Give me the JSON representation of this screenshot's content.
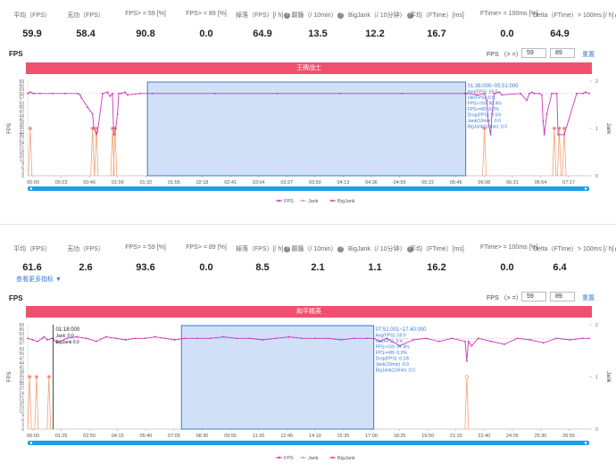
{
  "panels": [
    {
      "stats": [
        {
          "label": "平均（FPS）",
          "value": "59.9",
          "help": false
        },
        {
          "label": "无功（FPS）",
          "value": "58.4",
          "help": false
        },
        {
          "label": "FPS> = 59 [%]",
          "value": "90.8",
          "help": false
        },
        {
          "label": "FPS> = 89 [%]",
          "value": "0.0",
          "help": false
        },
        {
          "label": "掉落（FPS）[/ h]",
          "value": "64.9",
          "help": true
        },
        {
          "label": "颠簸（/ 10min）",
          "value": "13.5",
          "help": true
        },
        {
          "label": "BigJank（/ 10分钟）",
          "value": "12.2",
          "help": true
        },
        {
          "label": "平均（FTime）[ms]",
          "value": "16.7",
          "help": false
        },
        {
          "label": "FTime> = 100ms [%]",
          "value": "0.0",
          "help": false
        },
        {
          "label": "Delta（FTime）> 100ms [/ h]",
          "value": "64.9",
          "help": true
        }
      ],
      "more_link": "",
      "fps_title": "FPS",
      "filter_label": "FPS （> =）",
      "filter_values": [
        "59",
        "89"
      ],
      "reset_label": "重置",
      "banner": "王牌战士",
      "legend": [
        "FPS",
        "Jank",
        "BigJank"
      ],
      "tooltip_lines": [
        "01:36:000~05:51:000",
        "Avg(FPS)        :59.5",
        "Var(FPS)         :0.5",
        "FPS>=59         :98.4%",
        "FPS>=89         :0.0%",
        "Drop(FPS)       :0.0/h",
        "Jank(10min)     :0.0",
        "BigJank(10min) :0.0"
      ],
      "chart_data": {
        "type": "line",
        "title": "",
        "ylabel": "FPS",
        "y2label": "Jank",
        "ylim": [
          0,
          69
        ],
        "y2lim": [
          0,
          2
        ],
        "yticks": [
          0,
          3,
          6,
          9,
          12,
          15,
          18,
          21,
          24,
          27,
          30,
          32,
          35,
          38,
          41,
          44,
          47,
          50,
          53,
          57,
          60,
          63,
          66,
          69
        ],
        "y2ticks": [
          0,
          1,
          2
        ],
        "xmax_seconds": 450,
        "x_ticks": [
          "00:00",
          "00:23",
          "00:46",
          "01:09",
          "01:32",
          "01:55",
          "02:18",
          "02:41",
          "03:04",
          "03:27",
          "03:50",
          "04:13",
          "04:36",
          "04:59",
          "05:22",
          "05:45",
          "06:08",
          "06:31",
          "06:54",
          "07:17"
        ],
        "selection": {
          "start_seconds": 96,
          "end_seconds": 351
        },
        "series": [
          {
            "name": "FPS",
            "color": "#c837b8",
            "x": [
              0,
              2,
              5,
              10,
              20,
              30,
              40,
              42,
              43,
              48,
              52,
              53,
              55,
              56,
              60,
              64,
              66,
              68,
              69,
              70,
              72,
              73,
              75,
              78,
              80,
              90,
              100,
              150,
              200,
              250,
              300,
              350,
              352,
              360,
              366,
              368,
              369,
              371,
              372,
              374,
              378,
              380,
              395,
              400,
              402,
              404,
              406,
              410,
              412,
              413,
              414,
              416,
              420,
              424,
              425,
              430,
              440,
              445,
              447,
              450
            ],
            "y": [
              60,
              61,
              60,
              60,
              60,
              60,
              60,
              59,
              57,
              50,
              45,
              35,
              30,
              32,
              60,
              61,
              58,
              60,
              30,
              30,
              45,
              60,
              60,
              61,
              59,
              60,
              60,
              60,
              60,
              60,
              60,
              60,
              60,
              59,
              60,
              55,
              40,
              30,
              45,
              60,
              61,
              59,
              60,
              55,
              60,
              61,
              60,
              60,
              59,
              40,
              30,
              45,
              60,
              60,
              30,
              30,
              60,
              60,
              61,
              60
            ]
          },
          {
            "name": "Jank",
            "color": "#f5a071",
            "x": [
              2,
              52,
              55,
              68,
              70,
              366,
              422,
              426,
              430
            ],
            "y": [
              1,
              1,
              1,
              1,
              1,
              1,
              1,
              1,
              1
            ]
          },
          {
            "name": "BigJank",
            "color": "#e8475a",
            "x": [
              2,
              52,
              55,
              68,
              70,
              366,
              422,
              426,
              430
            ],
            "y": [
              1,
              1,
              1,
              1,
              1,
              1,
              1,
              1,
              1
            ]
          }
        ]
      }
    },
    {
      "stats": [
        {
          "label": "平均（FPS）",
          "value": "61.6",
          "help": false
        },
        {
          "label": "无功（FPS）",
          "value": "2.6",
          "help": false
        },
        {
          "label": "FPS> = 59 [%]",
          "value": "93.6",
          "help": false
        },
        {
          "label": "FPS> = 89 [%]",
          "value": "0.0",
          "help": false
        },
        {
          "label": "掉落（FPS）[/ h]",
          "value": "8.5",
          "help": true
        },
        {
          "label": "颠簸（/ 10min）",
          "value": "2.1",
          "help": true
        },
        {
          "label": "BigJank（/ 10分钟）",
          "value": "1.1",
          "help": true
        },
        {
          "label": "平均（FTime）[ms]",
          "value": "16.2",
          "help": false
        },
        {
          "label": "FTime> = 100ms [%]",
          "value": "0.0",
          "help": false
        },
        {
          "label": "Delta（FTime）> 100ms [/ h]",
          "value": "6.4",
          "help": true
        }
      ],
      "more_link": "查看更多指标 ▼",
      "fps_title": "FPS",
      "filter_label": "FPS （> =）",
      "filter_values": [
        "59",
        "89"
      ],
      "reset_label": "重置",
      "banner": "和平精英",
      "legend": [
        "FPS",
        "Jank",
        "BigJank"
      ],
      "tooltip_lines": [
        "07:51:001~17:40:000",
        "Avg(FPS)        :59.9",
        "Var(FPS)         :0.4",
        "FPS>=59         :97.4%",
        "FPS>=89         :0.0%",
        "Drop(FPS)       :6.1/h",
        "Jank(10min)     :0.0",
        "BigJank(10min) :0.0"
      ],
      "cursor": {
        "time_seconds": 78,
        "lines": [
          "01:18:000",
          "Jank       :0.0",
          "BigJank:0.0"
        ]
      },
      "chart_data": {
        "type": "line",
        "title": "",
        "ylabel": "FPS",
        "y2label": "Jank",
        "ylim": [
          0,
          69
        ],
        "y2lim": [
          0,
          2
        ],
        "yticks": [
          0,
          3,
          6,
          9,
          12,
          15,
          18,
          21,
          24,
          27,
          30,
          32,
          35,
          38,
          41,
          44,
          47,
          50,
          53,
          57,
          60,
          63,
          66,
          69
        ],
        "y2ticks": [
          0,
          1,
          2
        ],
        "xmax_seconds": 1720,
        "x_ticks": [
          "00:00",
          "01:25",
          "02:50",
          "04:15",
          "05:40",
          "07:05",
          "08:30",
          "09:55",
          "11:20",
          "12:45",
          "14:10",
          "15:35",
          "17:00",
          "18:25",
          "19:50",
          "21:15",
          "22:40",
          "24:05",
          "25:30",
          "26:55"
        ],
        "selection": {
          "start_seconds": 471,
          "end_seconds": 1060
        },
        "series": [
          {
            "name": "FPS",
            "color": "#c837b8",
            "x": [
              0,
              15,
              30,
              45,
              50,
              60,
              75,
              90,
              120,
              150,
              180,
              210,
              240,
              270,
              300,
              330,
              360,
              390,
              420,
              450,
              480,
              520,
              560,
              600,
              640,
              680,
              720,
              760,
              800,
              840,
              880,
              920,
              960,
              1000,
              1040,
              1060,
              1080,
              1100,
              1140,
              1180,
              1220,
              1260,
              1300,
              1340,
              1345,
              1350,
              1360,
              1380,
              1420,
              1460,
              1500,
              1540,
              1580,
              1620,
              1660,
              1700,
              1720
            ],
            "y": [
              60,
              59,
              58,
              60,
              61,
              59,
              60,
              57,
              60,
              61,
              60,
              58,
              61,
              60,
              59,
              60,
              60,
              61,
              60,
              59,
              60,
              60,
              60,
              61,
              60,
              60,
              59,
              60,
              61,
              60,
              60,
              60,
              59,
              60,
              60,
              60,
              58,
              60,
              55,
              59,
              60,
              58,
              60,
              58,
              45,
              58,
              55,
              60,
              58,
              56,
              60,
              59,
              57,
              60,
              59,
              60,
              60
            ]
          },
          {
            "name": "Jank",
            "color": "#f5a071",
            "x": [
              6,
              27,
              65,
              1345
            ],
            "y": [
              1,
              1,
              1,
              1
            ]
          },
          {
            "name": "BigJank",
            "color": "#e8475a",
            "x": [
              6,
              27,
              65
            ],
            "y": [
              1,
              1,
              1
            ]
          }
        ]
      }
    }
  ]
}
